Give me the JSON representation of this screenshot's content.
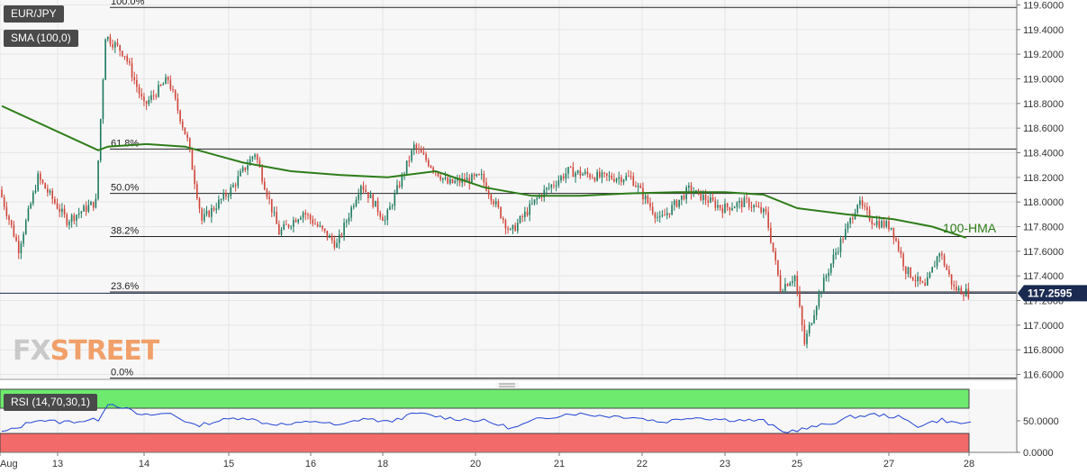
{
  "legend": {
    "symbol": "EUR/JPY",
    "sma": "SMA (100,0)",
    "rsi": "RSI (14,70,30,1)"
  },
  "logo": {
    "part1": "FX",
    "part2": "STREET"
  },
  "colors": {
    "up": "#1e7a5f",
    "down": "#d0453a",
    "hma": "#2e7d1a",
    "rsi_line": "#2346d8",
    "rsi_overbought": "#6eea6e",
    "rsi_oversold": "#f26a6a",
    "price_tag": "#1a2a50"
  },
  "chart_data": [
    {
      "type": "candlestick",
      "x_ticks": [
        "Aug",
        "13",
        "14",
        "15",
        "16",
        "18",
        "20",
        "21",
        "22",
        "23",
        "25",
        "27",
        "28"
      ],
      "y_ticks": [
        "119.6000",
        "119.4000",
        "119.2000",
        "119.0000",
        "118.8000",
        "118.6000",
        "118.4000",
        "118.2000",
        "118.0000",
        "117.8000",
        "117.6000",
        "117.4000",
        "117.2000",
        "117.0000",
        "116.8000",
        "116.6000"
      ],
      "ylim": [
        116.56,
        119.64
      ],
      "last_price": "117.2595",
      "fibonacci": [
        {
          "label": "100.0%",
          "value": 119.58
        },
        {
          "label": "61.8%",
          "value": 118.43
        },
        {
          "label": "50.0%",
          "value": 118.07
        },
        {
          "label": "38.2%",
          "value": 117.72
        },
        {
          "label": "23.6%",
          "value": 117.27
        },
        {
          "label": "0.0%",
          "value": 116.57
        }
      ],
      "annotation": "100-HMA",
      "key_points": [
        [
          0,
          118.1
        ],
        [
          8,
          117.62
        ],
        [
          16,
          118.2
        ],
        [
          28,
          117.85
        ],
        [
          40,
          118.0
        ],
        [
          44,
          119.35
        ],
        [
          52,
          119.2
        ],
        [
          60,
          118.78
        ],
        [
          70,
          119.0
        ],
        [
          78,
          118.5
        ],
        [
          84,
          117.85
        ],
        [
          96,
          118.1
        ],
        [
          106,
          118.4
        ],
        [
          116,
          117.75
        ],
        [
          126,
          117.92
        ],
        [
          140,
          117.65
        ],
        [
          150,
          118.15
        ],
        [
          160,
          117.85
        ],
        [
          172,
          118.45
        ],
        [
          186,
          118.15
        ],
        [
          200,
          118.2
        ],
        [
          212,
          117.75
        ],
        [
          224,
          118.05
        ],
        [
          236,
          118.25
        ],
        [
          250,
          118.2
        ],
        [
          262,
          118.2
        ],
        [
          274,
          117.85
        ],
        [
          286,
          118.1
        ],
        [
          300,
          117.95
        ],
        [
          310,
          118.0
        ],
        [
          318,
          117.9
        ],
        [
          324,
          117.3
        ],
        [
          330,
          117.4
        ],
        [
          334,
          116.85
        ],
        [
          340,
          117.25
        ],
        [
          346,
          117.55
        ],
        [
          352,
          117.8
        ],
        [
          356,
          118.0
        ],
        [
          362,
          117.85
        ],
        [
          370,
          117.8
        ],
        [
          376,
          117.45
        ],
        [
          384,
          117.3
        ],
        [
          390,
          117.6
        ],
        [
          396,
          117.3
        ],
        [
          402,
          117.26
        ]
      ],
      "candle_count": 402,
      "hma": [
        [
          0,
          118.78
        ],
        [
          40,
          118.42
        ],
        [
          44,
          118.45
        ],
        [
          60,
          118.47
        ],
        [
          76,
          118.45
        ],
        [
          100,
          118.32
        ],
        [
          120,
          118.25
        ],
        [
          140,
          118.22
        ],
        [
          160,
          118.2
        ],
        [
          180,
          118.25
        ],
        [
          200,
          118.12
        ],
        [
          220,
          118.05
        ],
        [
          240,
          118.05
        ],
        [
          260,
          118.07
        ],
        [
          280,
          118.08
        ],
        [
          300,
          118.08
        ],
        [
          316,
          118.06
        ],
        [
          330,
          117.95
        ],
        [
          350,
          117.9
        ],
        [
          370,
          117.86
        ],
        [
          386,
          117.8
        ],
        [
          400,
          117.71
        ]
      ]
    },
    {
      "type": "line",
      "name": "RSI (14,70,30,1)",
      "y_ticks": [
        "50.0000",
        "0.0000"
      ],
      "ylim": [
        0,
        100
      ],
      "overbought": 70,
      "oversold": 30,
      "points": [
        [
          0,
          32
        ],
        [
          6,
          38
        ],
        [
          14,
          52
        ],
        [
          24,
          48
        ],
        [
          34,
          50
        ],
        [
          40,
          52
        ],
        [
          44,
          78
        ],
        [
          50,
          72
        ],
        [
          58,
          58
        ],
        [
          70,
          62
        ],
        [
          80,
          42
        ],
        [
          90,
          50
        ],
        [
          100,
          56
        ],
        [
          110,
          46
        ],
        [
          120,
          44
        ],
        [
          130,
          50
        ],
        [
          140,
          42
        ],
        [
          150,
          54
        ],
        [
          160,
          48
        ],
        [
          172,
          62
        ],
        [
          186,
          54
        ],
        [
          200,
          50
        ],
        [
          212,
          38
        ],
        [
          222,
          52
        ],
        [
          236,
          62
        ],
        [
          250,
          58
        ],
        [
          262,
          56
        ],
        [
          274,
          48
        ],
        [
          286,
          56
        ],
        [
          300,
          52
        ],
        [
          316,
          50
        ],
        [
          324,
          32
        ],
        [
          334,
          38
        ],
        [
          344,
          46
        ],
        [
          352,
          56
        ],
        [
          362,
          60
        ],
        [
          372,
          56
        ],
        [
          380,
          42
        ],
        [
          390,
          52
        ],
        [
          396,
          46
        ],
        [
          402,
          47
        ]
      ]
    }
  ]
}
